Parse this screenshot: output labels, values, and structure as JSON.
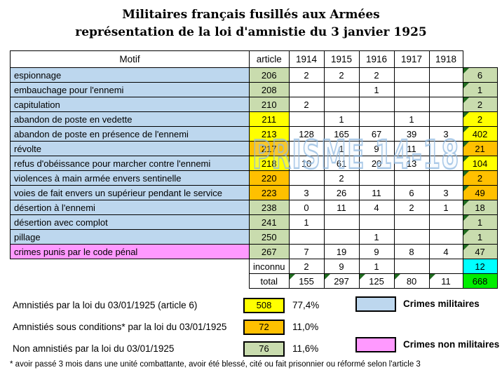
{
  "title": {
    "line1": "Militaires français fusillés aux Armées",
    "line2": "représentation de la loi d'amnistie du 3 janvier 1925"
  },
  "watermark": "PRISME 14-18",
  "colors": {
    "blue": "#BDD7EE",
    "pink": "#FF99FF",
    "green": "#C9DCAE",
    "yellow": "#FFFF00",
    "orange": "#FFC000",
    "cyan": "#00FFFF",
    "bright_green": "#00EE00",
    "white": "#FFFFFF",
    "triangle": "#1F6B1F",
    "watermark_stroke": "#9DC3E6",
    "border": "#000000"
  },
  "chart_data": {
    "type": "table",
    "columns": [
      "Motif",
      "article",
      "1914",
      "1915",
      "1916",
      "1917",
      "1918"
    ],
    "rows": [
      {
        "motif": "espionnage",
        "motif_color": "blue",
        "article": "206",
        "article_color": "green",
        "values": [
          "2",
          "2",
          "2",
          "",
          ""
        ],
        "total": "6",
        "total_color": "green"
      },
      {
        "motif": "embauchage pour l'ennemi",
        "motif_color": "blue",
        "article": "208",
        "article_color": "green",
        "values": [
          "",
          "",
          "1",
          "",
          ""
        ],
        "total": "1",
        "total_color": "green"
      },
      {
        "motif": "capitulation",
        "motif_color": "blue",
        "article": "210",
        "article_color": "green",
        "values": [
          "2",
          "",
          "",
          "",
          ""
        ],
        "total": "2",
        "total_color": "green"
      },
      {
        "motif": "abandon de poste en vedette",
        "motif_color": "blue",
        "article": "211",
        "article_color": "yellow",
        "values": [
          "",
          "1",
          "",
          "1",
          ""
        ],
        "total": "2",
        "total_color": "yellow"
      },
      {
        "motif": "abandon de poste en présence de l'ennemi",
        "motif_color": "blue",
        "article": "213",
        "article_color": "yellow",
        "values": [
          "128",
          "165",
          "67",
          "39",
          "3"
        ],
        "total": "402",
        "total_color": "yellow"
      },
      {
        "motif": "révolte",
        "motif_color": "blue",
        "article": "217",
        "article_color": "orange",
        "values": [
          "",
          "1",
          "9",
          "11",
          ""
        ],
        "total": "21",
        "total_color": "orange"
      },
      {
        "motif": "refus d'obéissance pour marcher contre l'ennemi",
        "motif_color": "blue",
        "article": "218",
        "article_color": "yellow",
        "values": [
          "10",
          "61",
          "20",
          "13",
          ""
        ],
        "total": "104",
        "total_color": "yellow"
      },
      {
        "motif": "violences à main armée  envers sentinelle",
        "motif_color": "blue",
        "article": "220",
        "article_color": "orange",
        "values": [
          "",
          "2",
          "",
          "",
          ""
        ],
        "total": "2",
        "total_color": "orange"
      },
      {
        "motif": "voies de fait envers un supérieur pendant le service",
        "motif_color": "blue",
        "article": "223",
        "article_color": "orange",
        "values": [
          "3",
          "26",
          "11",
          "6",
          "3"
        ],
        "total": "49",
        "total_color": "orange"
      },
      {
        "motif": "désertion à l'ennemi",
        "motif_color": "blue",
        "article": "238",
        "article_color": "green",
        "values": [
          "0",
          "11",
          "4",
          "2",
          "1"
        ],
        "total": "18",
        "total_color": "green"
      },
      {
        "motif": "désertion avec complot",
        "motif_color": "blue",
        "article": "241",
        "article_color": "green",
        "values": [
          "1",
          "",
          "",
          "",
          ""
        ],
        "total": "1",
        "total_color": "green"
      },
      {
        "motif": "pillage",
        "motif_color": "blue",
        "article": "250",
        "article_color": "green",
        "values": [
          "",
          "",
          "1",
          "",
          ""
        ],
        "total": "1",
        "total_color": "green"
      },
      {
        "motif": "crimes punis par le code pénal",
        "motif_color": "pink",
        "article": "267",
        "article_color": "green",
        "values": [
          "7",
          "19",
          "9",
          "8",
          "4"
        ],
        "total": "47",
        "total_color": "green"
      }
    ],
    "extra_rows": [
      {
        "label": "inconnu",
        "values": [
          "2",
          "9",
          "1",
          "",
          ""
        ],
        "total": "12",
        "total_color": "cyan",
        "value_triangles": false,
        "total_bold": false
      },
      {
        "label": "total",
        "values": [
          "155",
          "297",
          "125",
          "80",
          "11"
        ],
        "total": "668",
        "total_color": "bright_green",
        "value_triangles": true,
        "total_bold": true
      }
    ],
    "summary": [
      {
        "label": "Amnistiés par la loi du 03/01/1925 (article 6)",
        "value": "508",
        "color": "yellow",
        "percent": "77,4%"
      },
      {
        "label": "Amnistiés sous conditions* par la loi du 03/01/1925",
        "value": "72",
        "color": "orange",
        "percent": "11,0%"
      },
      {
        "label": "Non amnistiés par la loi du 03/01/1925",
        "value": "76",
        "color": "green",
        "percent": "11,6%"
      }
    ],
    "legend": [
      {
        "label": "Crimes militaires",
        "color": "blue"
      },
      {
        "label": "Crimes non militaires",
        "color": "pink"
      }
    ]
  },
  "footnote": "* avoir passé 3 mois dans une unité combattante, avoir été blessé, cité ou fait prisonnier ou réformé selon l'article 3"
}
